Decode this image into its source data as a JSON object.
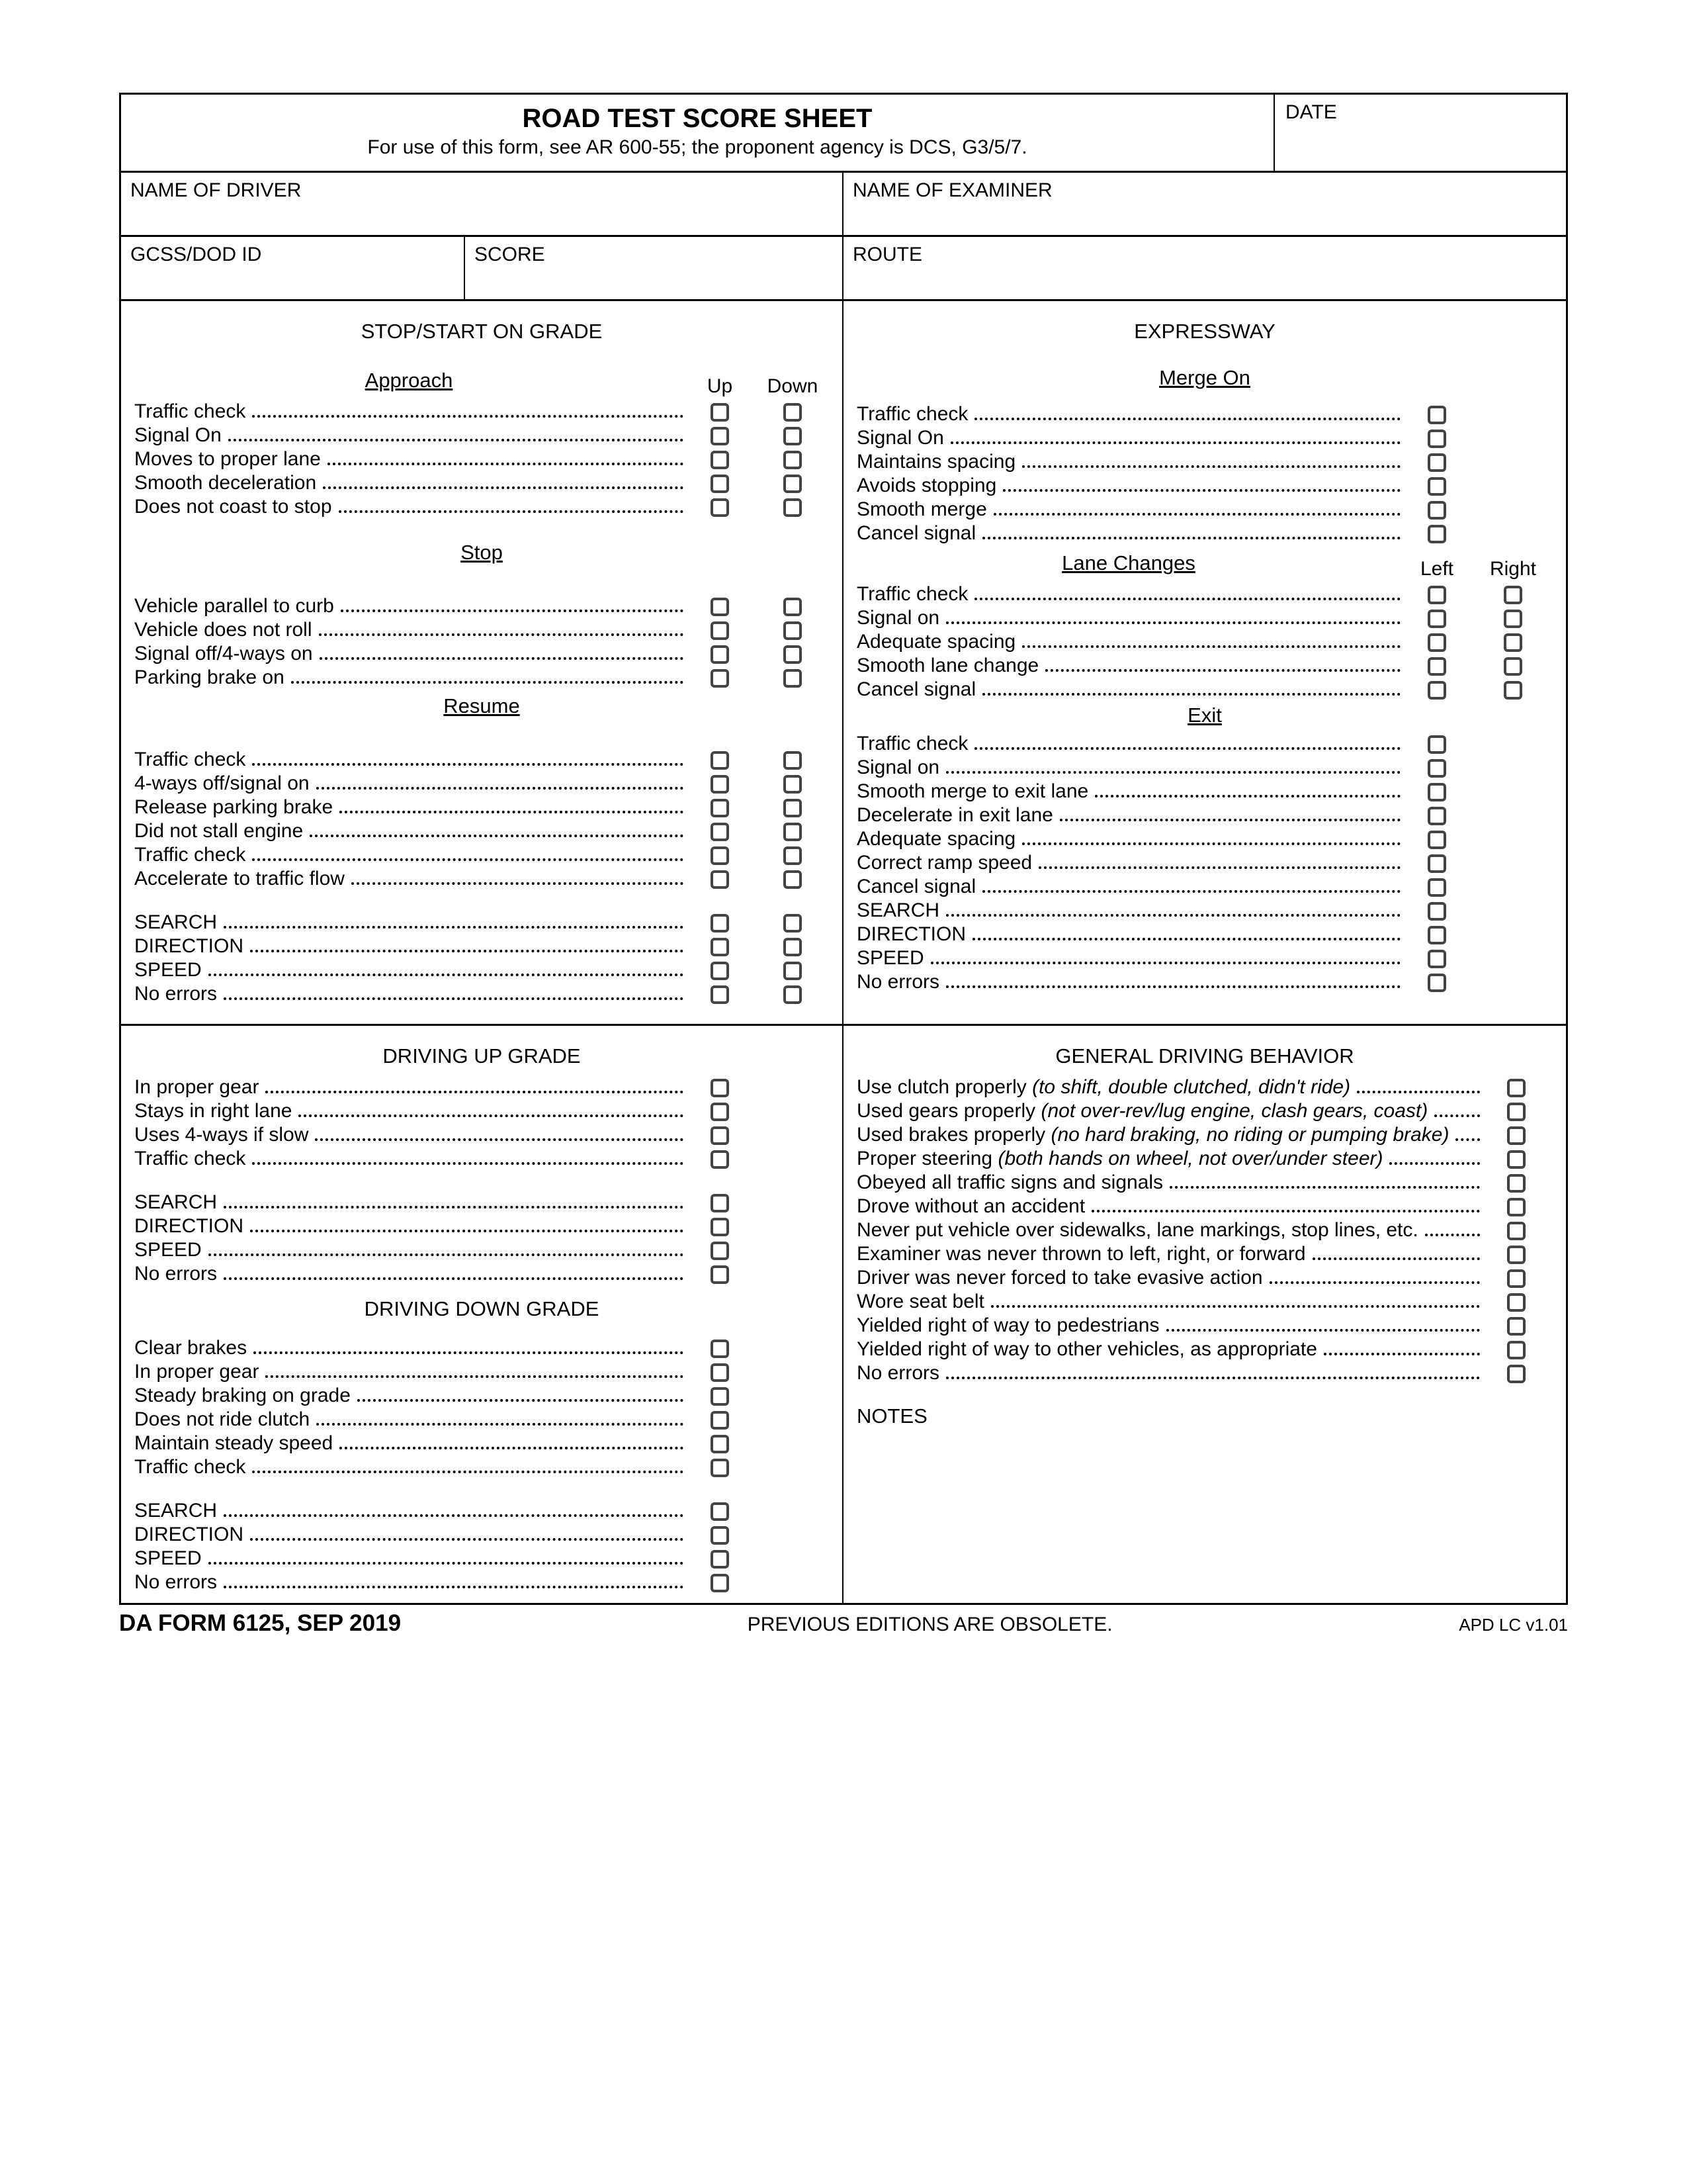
{
  "header": {
    "title": "ROAD TEST SCORE SHEET",
    "subtitle": "For use of this form, see AR 600-55; the proponent agency is DCS, G3/5/7.",
    "date_label": "DATE"
  },
  "fields": {
    "name_driver": "NAME OF DRIVER",
    "name_examiner": "NAME OF EXAMINER",
    "gcss": "GCSS/DOD ID",
    "score": "SCORE",
    "route": "ROUTE"
  },
  "cols": {
    "up": "Up",
    "down": "Down",
    "left": "Left",
    "right": "Right"
  },
  "sec": {
    "stop_start": "STOP/START ON GRADE",
    "expressway": "EXPRESSWAY",
    "approach": "Approach",
    "merge_on": "Merge On",
    "stop": "Stop",
    "lane_changes": "Lane Changes",
    "resume": "Resume",
    "exit": "Exit",
    "driving_up": "DRIVING UP GRADE",
    "driving_down": "DRIVING DOWN GRADE",
    "general": "GENERAL DRIVING BEHAVIOR",
    "notes": "NOTES"
  },
  "approach": {
    "i0": "Traffic check",
    "i1": "Signal On",
    "i2": "Moves to proper lane",
    "i3": "Smooth deceleration",
    "i4": "Does not coast to stop"
  },
  "stop": {
    "i0": "Vehicle parallel to curb",
    "i1": "Vehicle does not roll",
    "i2": "Signal off/4-ways on",
    "i3": "Parking brake on"
  },
  "resume": {
    "i0": "Traffic check",
    "i1": "4-ways off/signal on",
    "i2": "Release parking brake",
    "i3": "Did not stall engine",
    "i4": "Traffic check",
    "i5": "Accelerate to traffic flow",
    "s0": "SEARCH",
    "s1": "DIRECTION",
    "s2": "SPEED",
    "s3": "No errors"
  },
  "merge": {
    "i0": "Traffic check",
    "i1": "Signal On",
    "i2": "Maintains spacing",
    "i3": "Avoids stopping",
    "i4": "Smooth merge",
    "i5": "Cancel signal"
  },
  "lane": {
    "i0": "Traffic check",
    "i1": "Signal on",
    "i2": "Adequate spacing",
    "i3": "Smooth lane change",
    "i4": "Cancel signal"
  },
  "exit": {
    "i0": "Traffic check",
    "i1": "Signal on",
    "i2": "Smooth merge to exit lane",
    "i3": "Decelerate in exit lane",
    "i4": "Adequate spacing",
    "i5": "Correct ramp speed",
    "i6": "Cancel signal",
    "s0": "SEARCH",
    "s1": "DIRECTION",
    "s2": "SPEED",
    "s3": "No errors"
  },
  "up": {
    "i0": "In proper gear",
    "i1": "Stays in right lane",
    "i2": "Uses 4-ways if slow",
    "i3": "Traffic check",
    "s0": "SEARCH",
    "s1": "DIRECTION",
    "s2": "SPEED",
    "s3": "No errors"
  },
  "down": {
    "i0": "Clear brakes",
    "i1": "In proper gear",
    "i2": "Steady braking on grade",
    "i3": "Does not ride clutch",
    "i4": "Maintain steady speed",
    "i5": "Traffic check",
    "s0": "SEARCH",
    "s1": "DIRECTION",
    "s2": "SPEED",
    "s3": "No errors"
  },
  "gen": {
    "g0": {
      "t": "Use clutch properly ",
      "i": "(to shift, double clutched, didn't ride)"
    },
    "g1": {
      "t": "Used gears properly ",
      "i": "(not over-rev/lug engine, clash gears, coast)"
    },
    "g2": {
      "t": "Used brakes properly ",
      "i": "(no hard braking, no riding or pumping brake)"
    },
    "g3": {
      "t": "Proper steering ",
      "i": "(both hands on wheel, not over/under steer)"
    },
    "g4": {
      "t": "Obeyed all traffic signs and signals",
      "i": ""
    },
    "g5": {
      "t": "Drove without an accident",
      "i": ""
    },
    "g6": {
      "t": "Never put vehicle over sidewalks, lane markings, stop lines, etc.",
      "i": ""
    },
    "g7": {
      "t": "Examiner was never thrown to left, right, or forward",
      "i": ""
    },
    "g8": {
      "t": "Driver was never forced to take evasive action",
      "i": ""
    },
    "g9": {
      "t": "Wore seat belt",
      "i": ""
    },
    "g10": {
      "t": "Yielded right of way to pedestrians",
      "i": ""
    },
    "g11": {
      "t": "Yielded right of way to other vehicles, as appropriate",
      "i": ""
    },
    "g12": {
      "t": "No errors",
      "i": ""
    }
  },
  "footer": {
    "left": "DA FORM 6125, SEP 2019",
    "mid": "PREVIOUS EDITIONS ARE OBSOLETE.",
    "right": "APD LC v1.01"
  }
}
